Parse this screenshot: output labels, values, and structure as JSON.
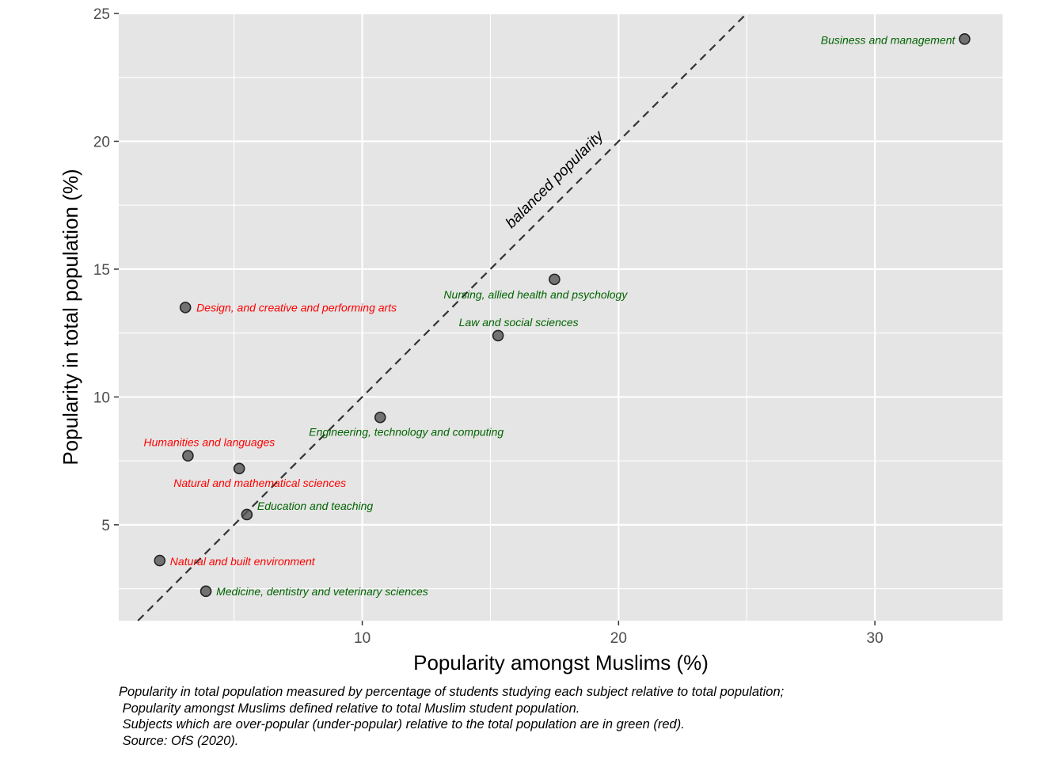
{
  "chart_data": {
    "type": "scatter",
    "xlabel": "Popularity amongst Muslims (%)",
    "ylabel": "Popularity in total population (%)",
    "xlim": [
      0.5,
      35
    ],
    "ylim": [
      1.25,
      25
    ],
    "x_ticks": [
      10,
      20,
      30
    ],
    "y_ticks": [
      5,
      10,
      15,
      20,
      25
    ],
    "grid": true,
    "colors": {
      "over_popular": "#006400",
      "under_popular": "#ff0000",
      "point": "#555555",
      "panel": "#e5e5e5",
      "grid": "#ffffff"
    },
    "reference_line": {
      "label": "balanced popularity",
      "slope": 1,
      "intercept": 0
    },
    "points": [
      {
        "subject": "Business and management",
        "x": 33.5,
        "y": 24.0,
        "group": "over"
      },
      {
        "subject": "Nursing, allied health and psychology",
        "x": 17.5,
        "y": 14.6,
        "group": "over"
      },
      {
        "subject": "Law and social sciences",
        "x": 15.3,
        "y": 12.4,
        "group": "over"
      },
      {
        "subject": "Engineering, technology and computing",
        "x": 10.7,
        "y": 9.2,
        "group": "over"
      },
      {
        "subject": "Education and teaching",
        "x": 5.5,
        "y": 5.4,
        "group": "over"
      },
      {
        "subject": "Medicine, dentistry and veterinary sciences",
        "x": 3.9,
        "y": 2.4,
        "group": "over"
      },
      {
        "subject": "Design, and creative and performing arts",
        "x": 3.1,
        "y": 13.5,
        "group": "under"
      },
      {
        "subject": "Humanities and languages",
        "x": 3.2,
        "y": 7.7,
        "group": "under"
      },
      {
        "subject": "Natural and mathematical sciences",
        "x": 5.2,
        "y": 7.2,
        "group": "under"
      },
      {
        "subject": "Natural and built environment",
        "x": 2.1,
        "y": 3.6,
        "group": "under"
      }
    ]
  },
  "caption": {
    "lines": [
      "Popularity in total population measured by percentage of students studying each subject relative to total population;",
      " Popularity amongst Muslims defined relative to total Muslim student population.",
      " Subjects which are over-popular (under-popular) relative to the total population are in green (red).",
      " Source: OfS (2020)."
    ]
  }
}
